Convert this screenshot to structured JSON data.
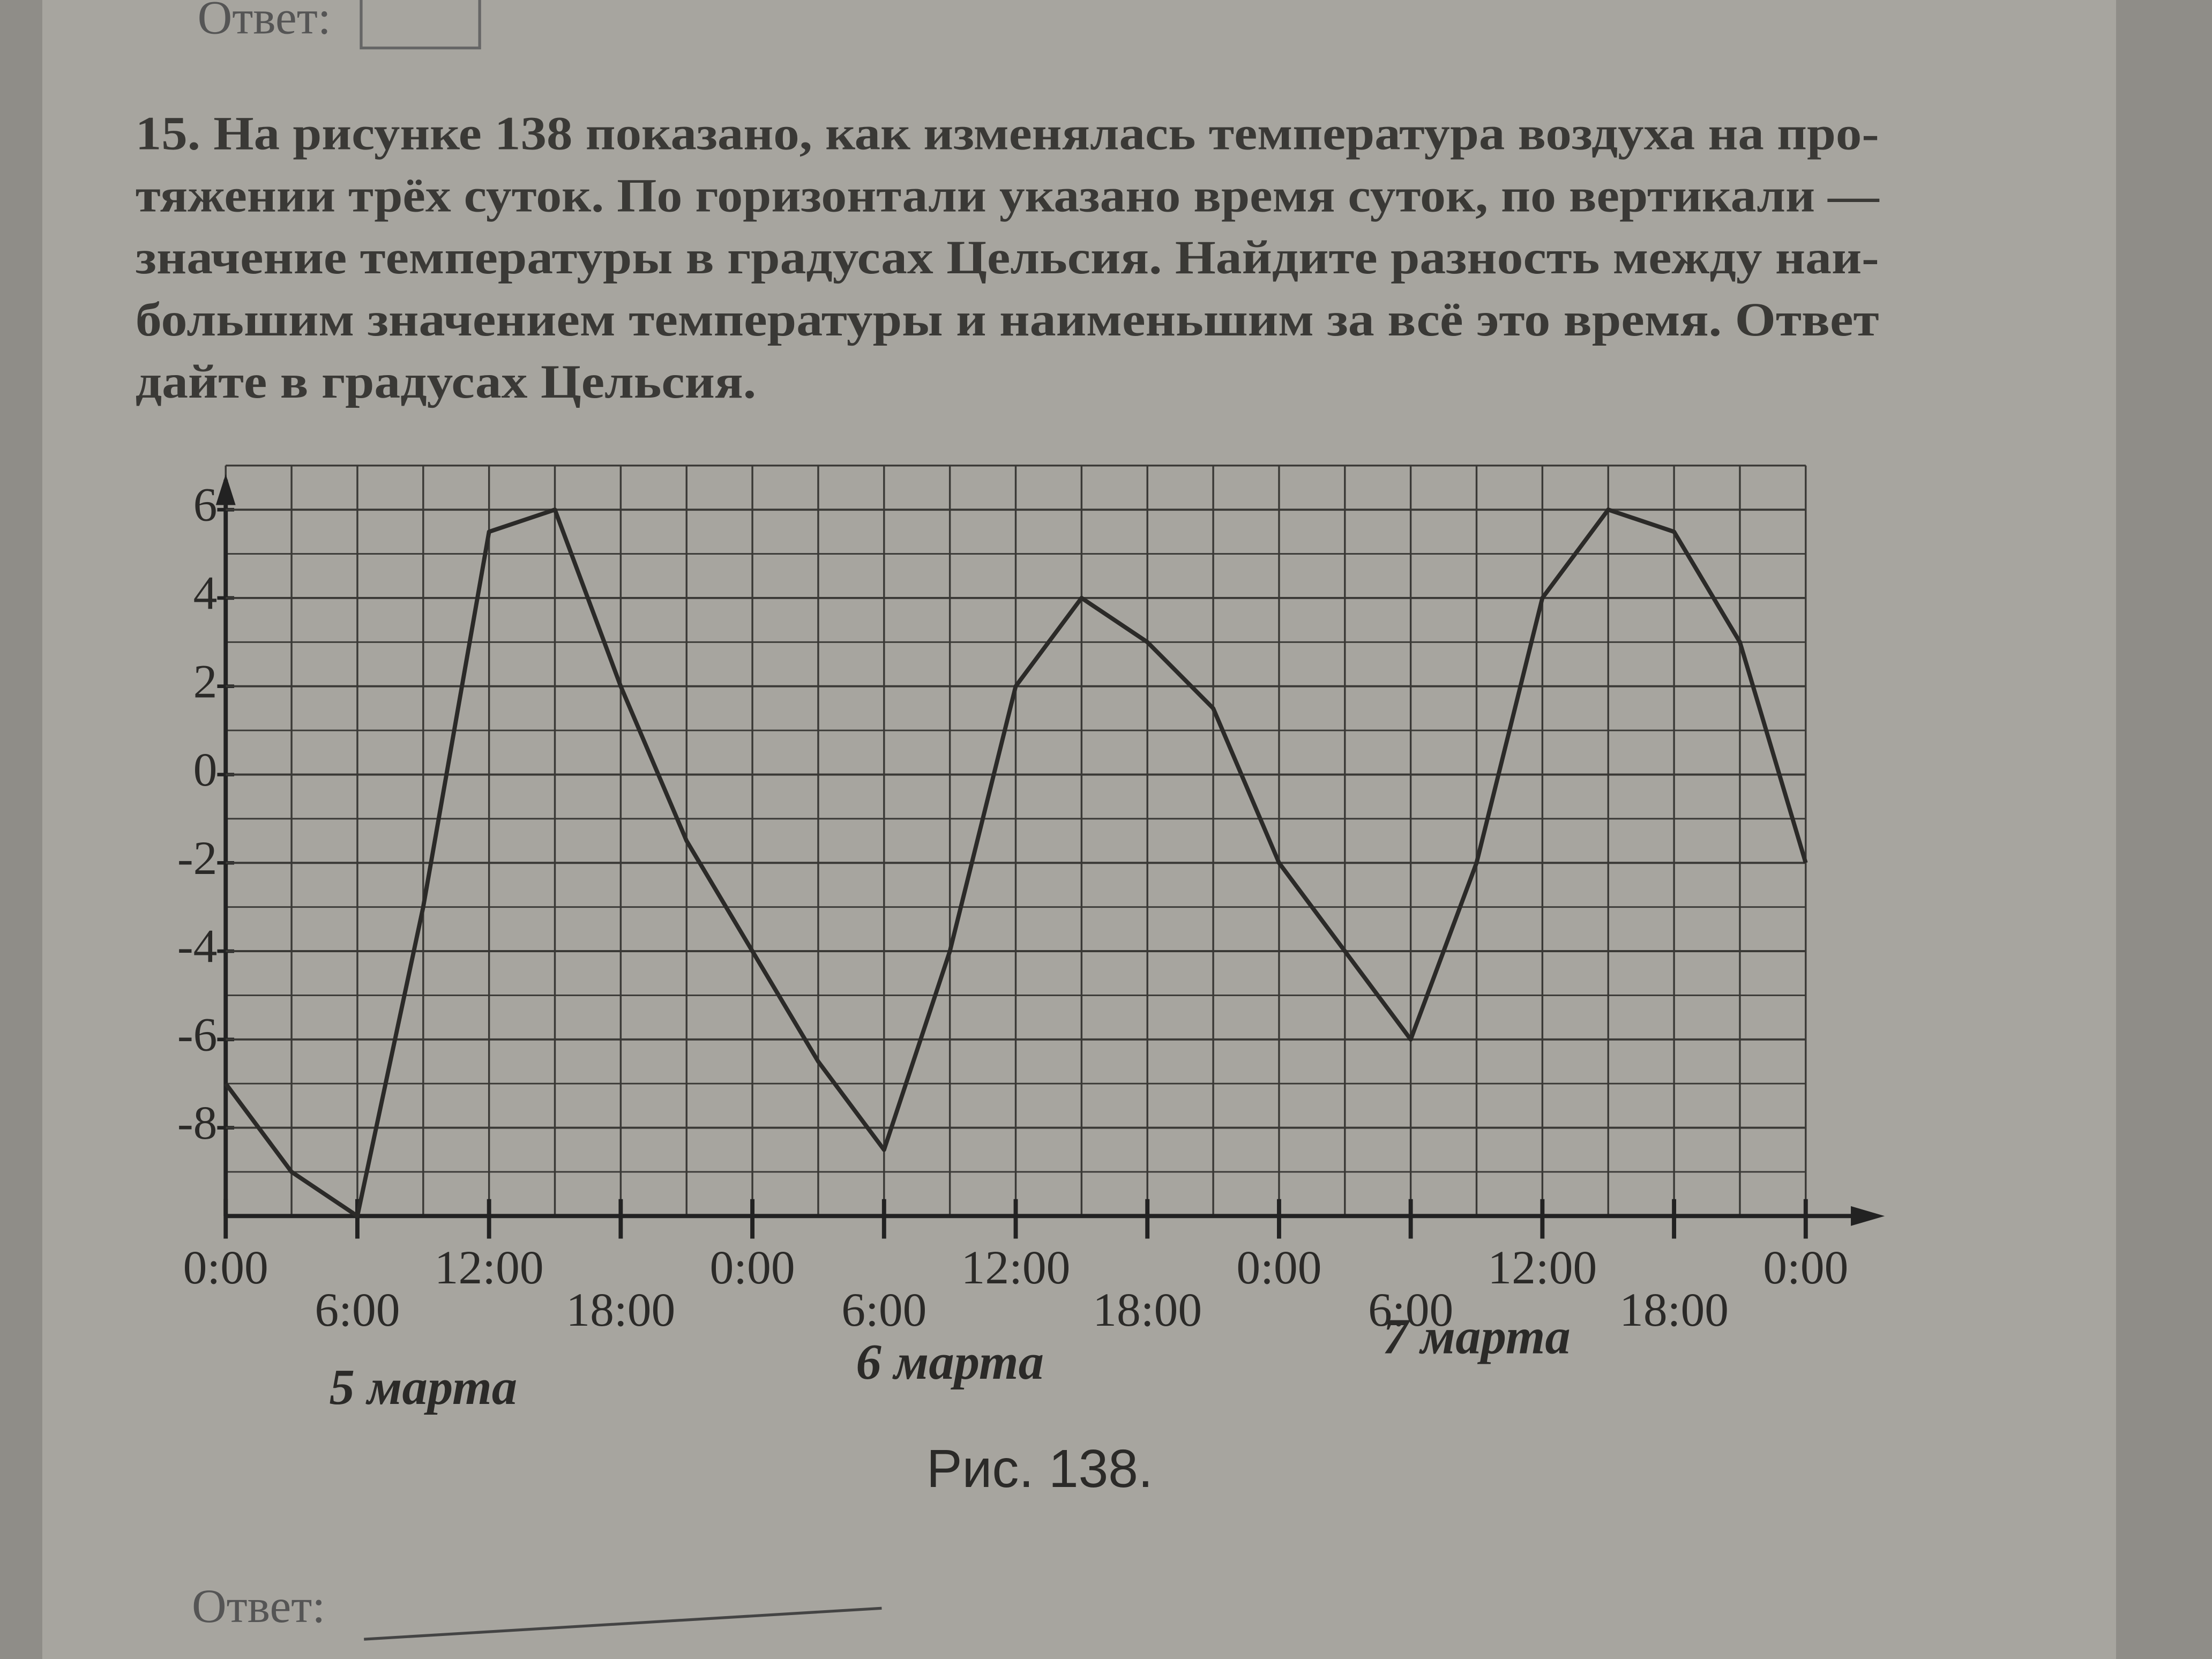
{
  "answer_top": "Ответ:",
  "problem": [
    "15. На рисунке 138 показано, как изменялась температура воздуха на про-",
    "тяжении трёх суток. По горизонтали указано время суток, по вертикали —",
    "значение температуры в градусах Цельсия. Найдите разность между наи-",
    "большим значением температуры и наименьшим за всё это время. Ответ",
    "дайте в градусах Цельсия."
  ],
  "chart_data": {
    "type": "line",
    "x": [
      0,
      3,
      6,
      9,
      12,
      15,
      18,
      21,
      24,
      27,
      30,
      33,
      36,
      39,
      42,
      45,
      48,
      51,
      54,
      57,
      60,
      63,
      66,
      69,
      72
    ],
    "series": [
      {
        "color": "#2b2a28",
        "values": [
          -7,
          -9,
          -10,
          -3,
          5.5,
          6,
          2,
          -1.5,
          -4,
          -6.5,
          -8.5,
          -4,
          2,
          4,
          3,
          1.5,
          -2,
          -4,
          -6,
          -2,
          4,
          6,
          5.5,
          3,
          -2
        ]
      }
    ],
    "xlim": [
      0,
      72
    ],
    "ylim": [
      -10,
      7
    ],
    "xticks": [
      {
        "value": 0,
        "label": "0:00"
      },
      {
        "value": 6,
        "label": "6:00"
      },
      {
        "value": 12,
        "label": "12:00"
      },
      {
        "value": 18,
        "label": "18:00"
      },
      {
        "value": 24,
        "label": "0:00"
      },
      {
        "value": 30,
        "label": "6:00"
      },
      {
        "value": 36,
        "label": "12:00"
      },
      {
        "value": 42,
        "label": "18:00"
      },
      {
        "value": 48,
        "label": "0:00"
      },
      {
        "value": 54,
        "label": "6:00"
      },
      {
        "value": 60,
        "label": "12:00"
      },
      {
        "value": 66,
        "label": "18:00"
      },
      {
        "value": 72,
        "label": "0:00"
      }
    ],
    "yticks": [
      -8,
      -6,
      -4,
      -2,
      0,
      2,
      4,
      6
    ],
    "grid": true,
    "day_labels": [
      "5 марта",
      "6 марта",
      "7 марта"
    ]
  },
  "caption": "Рис. 138.",
  "answer_bottom": "Ответ:"
}
